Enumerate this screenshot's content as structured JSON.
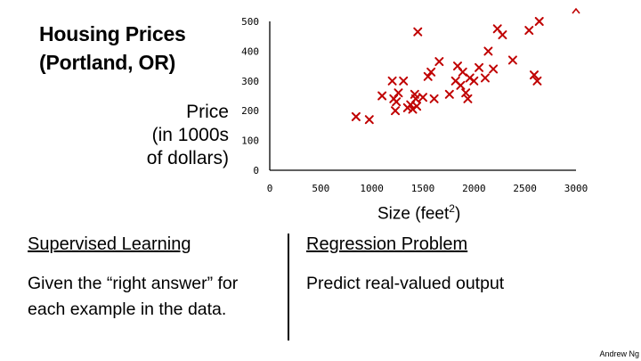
{
  "slide": {
    "title_line1": "Housing Prices",
    "title_line2": "(Portland, OR)",
    "ylabel_line1": "Price",
    "ylabel_line2": "(in 1000s",
    "ylabel_line3": "of dollars)",
    "xlabel_text": "Size (feet",
    "xlabel_sup": "2",
    "xlabel_close": ")",
    "left_heading": "Supervised Learning",
    "left_body_line1": "Given the “right answer” for",
    "left_body_line2": "each example in the data.",
    "right_heading": "Regression Problem",
    "right_body": "Predict real-valued output",
    "footer": "Andrew Ng"
  },
  "chart_data": {
    "type": "scatter",
    "title": "Housing Prices (Portland, OR)",
    "xlabel": "Size (feet2)",
    "ylabel": "Price (in 1000s of dollars)",
    "xlim": [
      0,
      3000
    ],
    "ylim": [
      0,
      500
    ],
    "xticks": [
      0,
      500,
      1000,
      1500,
      2000,
      2500,
      3000
    ],
    "yticks": [
      0,
      100,
      200,
      300,
      400,
      500
    ],
    "grid": false,
    "marker": "x",
    "marker_color": "#c00000",
    "x": [
      845,
      975,
      1100,
      1200,
      1215,
      1230,
      1240,
      1260,
      1310,
      1350,
      1380,
      1400,
      1420,
      1430,
      1450,
      1500,
      1550,
      1580,
      1610,
      1660,
      1760,
      1820,
      1840,
      1870,
      1890,
      1920,
      1940,
      1960,
      2000,
      2050,
      2110,
      2140,
      2190,
      2230,
      2280,
      2380,
      2540,
      2590,
      2620,
      2640,
      1440
    ],
    "y": [
      180,
      170,
      250,
      300,
      240,
      200,
      230,
      260,
      300,
      210,
      220,
      205,
      255,
      240,
      465,
      245,
      315,
      330,
      240,
      365,
      255,
      300,
      350,
      285,
      330,
      260,
      240,
      310,
      300,
      345,
      310,
      400,
      340,
      475,
      455,
      370,
      470,
      320,
      300,
      500,
      215
    ]
  }
}
